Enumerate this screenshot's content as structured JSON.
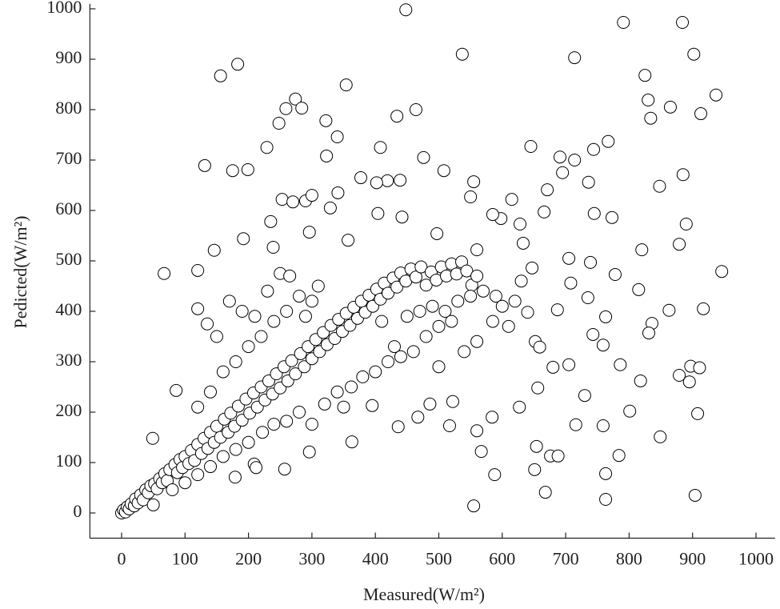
{
  "chart_data": {
    "type": "scatter",
    "xlabel": "Measured(W/m²)",
    "ylabel": "Pedicted(W/m²)",
    "color": "#000000",
    "xlim": [
      -50,
      1030
    ],
    "ylim": [
      -50,
      1010
    ],
    "xticks": [
      0,
      100,
      200,
      300,
      400,
      500,
      600,
      700,
      800,
      900,
      1000
    ],
    "yticks": [
      0,
      100,
      200,
      300,
      400,
      500,
      600,
      700,
      800,
      900,
      1000
    ],
    "x": [
      448,
      791,
      884,
      537,
      714,
      902,
      156,
      183,
      825,
      354,
      937,
      274,
      464,
      259,
      284,
      830,
      865,
      913,
      834,
      434,
      322,
      248,
      340,
      229,
      408,
      645,
      767,
      131,
      175,
      199,
      323,
      476,
      508,
      744,
      714,
      691,
      695,
      377,
      419,
      439,
      402,
      885,
      848,
      550,
      555,
      671,
      736,
      615,
      253,
      270,
      290,
      300,
      341,
      329,
      404,
      442,
      497,
      666,
      745,
      773,
      890,
      628,
      598,
      585,
      235,
      192,
      296,
      357,
      633,
      560,
      820,
      879,
      146,
      239,
      67,
      120,
      705,
      739,
      946,
      778,
      708,
      735,
      647,
      815,
      863,
      917,
      836,
      831,
      763,
      687,
      640,
      743,
      759,
      652,
      659,
      786,
      680,
      705,
      897,
      911,
      879,
      895,
      818,
      656,
      730,
      627,
      801,
      908,
      716,
      759,
      584,
      522,
      486,
      517,
      560,
      849,
      654,
      567,
      676,
      688,
      784,
      651,
      588,
      763,
      668,
      763,
      904,
      555,
      436,
      467,
      395,
      363,
      257,
      209,
      179,
      296,
      86,
      49,
      120,
      135,
      0,
      3,
      6,
      9,
      12,
      15,
      20,
      22,
      26,
      30,
      34,
      38,
      42,
      46,
      50,
      52,
      56,
      60,
      64,
      68,
      72,
      76,
      80,
      84,
      88,
      92,
      96,
      100,
      100,
      106,
      110,
      115,
      120,
      120,
      126,
      130,
      136,
      140,
      140,
      146,
      150,
      156,
      160,
      162,
      168,
      172,
      178,
      180,
      184,
      190,
      196,
      200,
      202,
      208,
      212,
      214,
      220,
      222,
      226,
      232,
      238,
      240,
      244,
      250,
      256,
      260,
      262,
      268,
      274,
      280,
      282,
      288,
      294,
      300,
      300,
      306,
      312,
      318,
      320,
      324,
      330,
      336,
      340,
      342,
      348,
      350,
      354,
      360,
      362,
      366,
      372,
      378,
      380,
      384,
      390,
      396,
      400,
      402,
      408,
      414,
      420,
      420,
      428,
      434,
      440,
      440,
      448,
      456,
      460,
      464,
      472,
      480,
      480,
      488,
      496,
      500,
      504,
      512,
      520,
      520,
      528,
      536,
      540,
      544,
      552,
      560,
      560,
      570,
      585,
      590,
      600,
      610,
      620,
      630,
      500,
      410,
      430,
      450,
      470,
      490,
      510,
      530,
      550,
      120,
      140,
      160,
      180,
      200,
      220,
      240,
      260,
      280,
      300,
      170,
      190,
      210,
      230,
      250,
      265,
      290,
      310,
      150
    ],
    "values": [
      998,
      973,
      973,
      910,
      903,
      910,
      867,
      890,
      868,
      849,
      829,
      821,
      800,
      802,
      803,
      819,
      805,
      792,
      783,
      787,
      778,
      773,
      746,
      725,
      725,
      727,
      737,
      689,
      679,
      681,
      708,
      705,
      679,
      721,
      700,
      706,
      675,
      665,
      659,
      660,
      655,
      671,
      648,
      627,
      657,
      641,
      656,
      622,
      622,
      617,
      619,
      630,
      635,
      605,
      594,
      587,
      554,
      597,
      594,
      586,
      573,
      573,
      584,
      592,
      578,
      544,
      557,
      541,
      535,
      522,
      522,
      533,
      521,
      527,
      475,
      481,
      505,
      497,
      479,
      473,
      456,
      427,
      486,
      443,
      402,
      405,
      376,
      357,
      389,
      403,
      398,
      354,
      333,
      340,
      329,
      294,
      289,
      294,
      291,
      288,
      273,
      260,
      262,
      248,
      233,
      210,
      202,
      197,
      175,
      173,
      190,
      221,
      216,
      173,
      163,
      151,
      132,
      122,
      113,
      113,
      114,
      86,
      76,
      78,
      41,
      27,
      35,
      14,
      171,
      190,
      213,
      141,
      87,
      97,
      71,
      121,
      243,
      148,
      405,
      375,
      0,
      6,
      2,
      12,
      8,
      18,
      14,
      28,
      20,
      36,
      26,
      46,
      40,
      54,
      16,
      58,
      48,
      68,
      60,
      78,
      64,
      86,
      46,
      96,
      80,
      106,
      90,
      60,
      112,
      98,
      124,
      104,
      76,
      136,
      118,
      148,
      128,
      92,
      160,
      140,
      172,
      150,
      112,
      186,
      160,
      198,
      172,
      126,
      212,
      184,
      226,
      140,
      198,
      238,
      90,
      210,
      250,
      160,
      224,
      262,
      236,
      176,
      276,
      248,
      290,
      182,
      262,
      302,
      276,
      200,
      316,
      290,
      330,
      176,
      306,
      344,
      320,
      358,
      216,
      334,
      372,
      346,
      240,
      384,
      360,
      210,
      396,
      372,
      250,
      408,
      386,
      420,
      270,
      398,
      432,
      410,
      280,
      444,
      424,
      456,
      300,
      436,
      466,
      448,
      310,
      476,
      460,
      484,
      320,
      468,
      488,
      350,
      452,
      478,
      462,
      370,
      488,
      470,
      380,
      494,
      474,
      498,
      320,
      480,
      452,
      340,
      470,
      440,
      380,
      430,
      410,
      370,
      420,
      460,
      290,
      380,
      330,
      390,
      400,
      410,
      400,
      420,
      430,
      210,
      240,
      280,
      300,
      330,
      350,
      380,
      400,
      430,
      420,
      420,
      400,
      390,
      440,
      475,
      470,
      390,
      450,
      350
    ]
  }
}
